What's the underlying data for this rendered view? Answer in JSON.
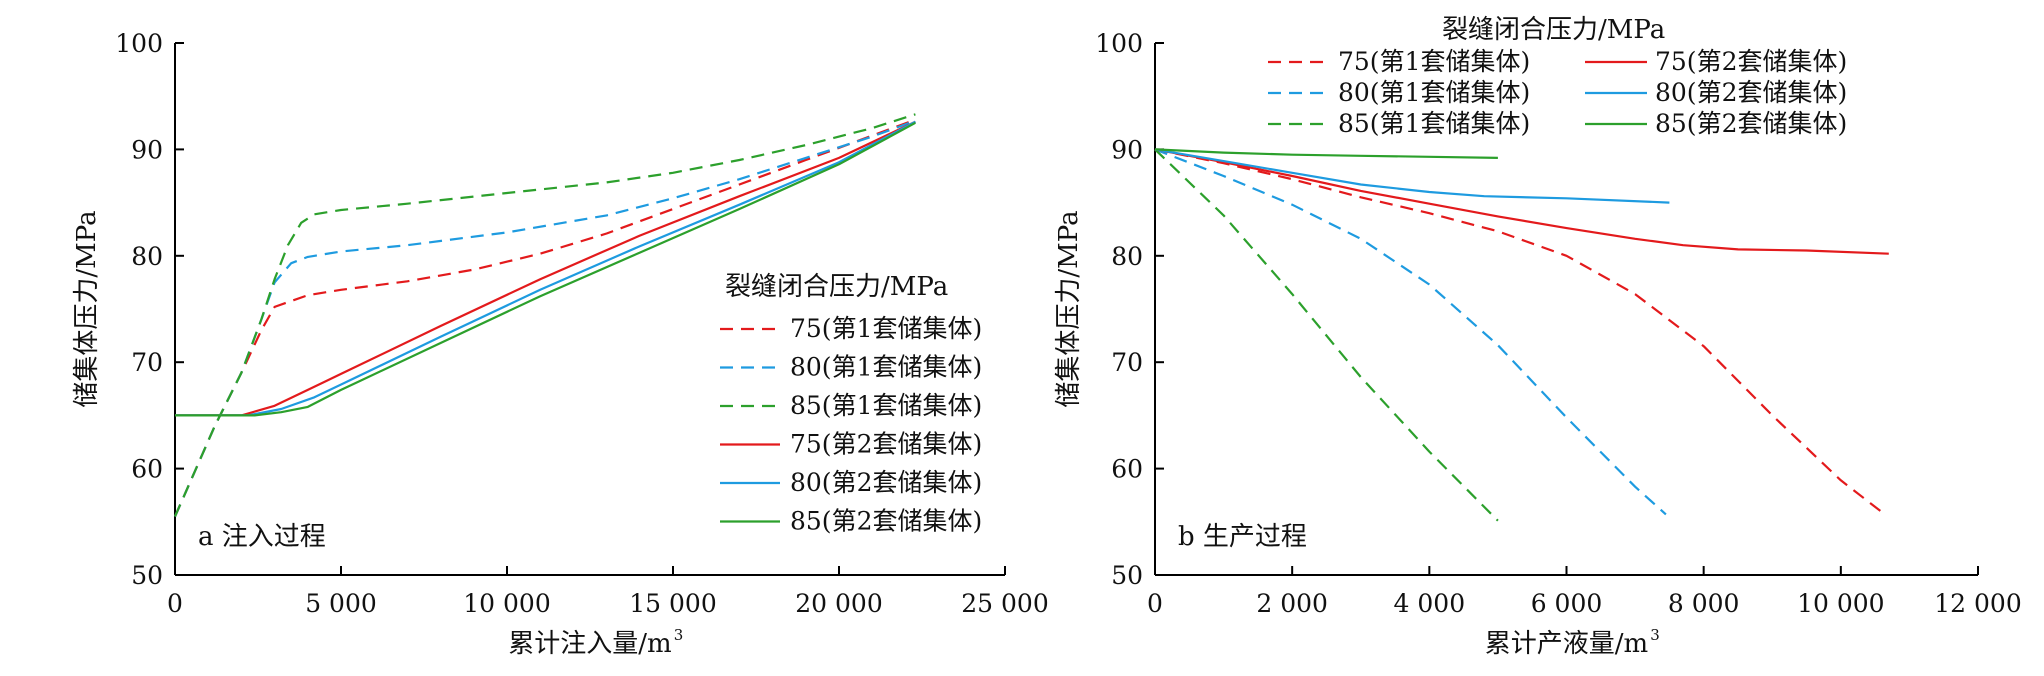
{
  "chart_data": [
    {
      "type": "line",
      "panel_label": "a 注入过程",
      "xlabel": "累计注入量/m",
      "xlabel_sup": "3",
      "ylabel": "储集体压力/MPa",
      "xlim": [
        0,
        25000
      ],
      "ylim": [
        50,
        100
      ],
      "xticks": [
        0,
        5000,
        10000,
        15000,
        20000,
        25000
      ],
      "xtick_labels": [
        "0",
        "5 000",
        "10 000",
        "15 000",
        "20 000",
        "25 000"
      ],
      "yticks": [
        50,
        60,
        70,
        80,
        90,
        100
      ],
      "ytick_labels": [
        "50",
        "60",
        "70",
        "80",
        "90",
        "100"
      ],
      "grid": false,
      "legend_title": "裂缝闭合压力/MPa",
      "legend_position": "right",
      "series": [
        {
          "name": "75(第1套储集体)",
          "color": "#e31a1c",
          "dash": true,
          "x": [
            0,
            1200,
            2000,
            2600,
            3000,
            4000,
            5000,
            7000,
            9000,
            11000,
            13000,
            15000,
            17000,
            19000,
            21000,
            22300
          ],
          "y": [
            55.5,
            64,
            69,
            73,
            75.2,
            76.3,
            76.8,
            77.6,
            78.7,
            80.2,
            82.1,
            84.4,
            86.7,
            89.0,
            91.3,
            92.8
          ]
        },
        {
          "name": "80(第1套储集体)",
          "color": "#1e9be0",
          "dash": true,
          "x": [
            0,
            1200,
            2000,
            2600,
            3000,
            3500,
            4000,
            5000,
            7000,
            10000,
            13000,
            15000,
            17000,
            19000,
            21000,
            22300
          ],
          "y": [
            55.5,
            64,
            69,
            74,
            77.5,
            79.3,
            79.9,
            80.4,
            81.0,
            82.2,
            83.8,
            85.4,
            87.2,
            89.2,
            91.2,
            92.7
          ]
        },
        {
          "name": "85(第1套储集体)",
          "color": "#2ca02c",
          "dash": true,
          "x": [
            0,
            1200,
            2000,
            2600,
            3000,
            3400,
            3800,
            4200,
            5000,
            7000,
            10000,
            13000,
            15000,
            17000,
            19000,
            21000,
            22300
          ],
          "y": [
            55.5,
            64,
            69,
            74,
            77.8,
            81.0,
            83.1,
            83.9,
            84.3,
            84.9,
            85.9,
            86.9,
            87.8,
            89.0,
            90.4,
            92.0,
            93.3
          ]
        },
        {
          "name": "75(第2套储集体)",
          "color": "#e31a1c",
          "dash": false,
          "x": [
            0,
            2000,
            3000,
            4000,
            5000,
            8000,
            11000,
            14000,
            17000,
            20000,
            22300
          ],
          "y": [
            65,
            65,
            65.9,
            67.4,
            68.9,
            73.4,
            77.8,
            81.9,
            85.6,
            89.2,
            92.6
          ]
        },
        {
          "name": "80(第2套储集体)",
          "color": "#1e9be0",
          "dash": false,
          "x": [
            0,
            2200,
            3200,
            4200,
            5200,
            8000,
            11000,
            14000,
            17000,
            20000,
            22300
          ],
          "y": [
            65,
            65,
            65.6,
            66.7,
            68.2,
            72.4,
            76.8,
            80.9,
            84.8,
            88.8,
            92.6
          ]
        },
        {
          "name": "85(第2套储集体)",
          "color": "#2ca02c",
          "dash": false,
          "x": [
            0,
            2400,
            3200,
            4000,
            5000,
            8000,
            11000,
            14000,
            17000,
            20000,
            22300
          ],
          "y": [
            65,
            65,
            65.3,
            65.8,
            67.4,
            71.8,
            76.2,
            80.3,
            84.4,
            88.6,
            92.5
          ]
        }
      ]
    },
    {
      "type": "line",
      "panel_label": "b 生产过程",
      "xlabel": "累计产液量/m",
      "xlabel_sup": "3",
      "ylabel": "储集体压力/MPa",
      "xlim": [
        0,
        12000
      ],
      "ylim": [
        50,
        100
      ],
      "xticks": [
        0,
        2000,
        4000,
        6000,
        8000,
        10000,
        12000
      ],
      "xtick_labels": [
        "0",
        "2 000",
        "4 000",
        "6 000",
        "8 000",
        "10 000",
        "12 000"
      ],
      "yticks": [
        50,
        60,
        70,
        80,
        90,
        100
      ],
      "ytick_labels": [
        "50",
        "60",
        "70",
        "80",
        "90",
        "100"
      ],
      "grid": false,
      "legend_title": "裂缝闭合压力/MPa",
      "legend_position": "top",
      "series": [
        {
          "name": "75(第1套储集体)",
          "color": "#e31a1c",
          "dash": true,
          "x": [
            0,
            1000,
            2000,
            3000,
            4000,
            5000,
            6000,
            7000,
            8000,
            9000,
            10000,
            10600
          ],
          "y": [
            90,
            88.7,
            87.2,
            85.5,
            84.0,
            82.3,
            80.0,
            76.4,
            71.5,
            65.0,
            58.9,
            55.9
          ]
        },
        {
          "name": "80(第1套储集体)",
          "color": "#1e9be0",
          "dash": true,
          "x": [
            0,
            1000,
            2000,
            3000,
            4000,
            5000,
            6000,
            7000,
            7450
          ],
          "y": [
            90,
            87.5,
            84.8,
            81.6,
            77.3,
            71.6,
            64.8,
            58.3,
            55.7
          ]
        },
        {
          "name": "85(第1套储集体)",
          "color": "#2ca02c",
          "dash": true,
          "x": [
            0,
            1000,
            2000,
            3000,
            4000,
            5000
          ],
          "y": [
            90,
            83.8,
            76.4,
            68.6,
            61.6,
            55.1
          ]
        },
        {
          "name": "75(第2套储集体)",
          "color": "#e31a1c",
          "dash": false,
          "x": [
            0,
            1000,
            2000,
            3000,
            4000,
            5000,
            6000,
            7000,
            7700,
            8500,
            9500,
            10700
          ],
          "y": [
            90,
            88.8,
            87.5,
            86.1,
            84.9,
            83.7,
            82.6,
            81.6,
            81.0,
            80.6,
            80.5,
            80.2
          ]
        },
        {
          "name": "80(第2套储集体)",
          "color": "#1e9be0",
          "dash": false,
          "x": [
            0,
            1000,
            2000,
            3000,
            4000,
            4800,
            6000,
            7500
          ],
          "y": [
            90,
            88.9,
            87.8,
            86.7,
            86.0,
            85.6,
            85.4,
            85.0
          ]
        },
        {
          "name": "85(第2套储集体)",
          "color": "#2ca02c",
          "dash": false,
          "x": [
            0,
            1000,
            2000,
            3000,
            4000,
            5000
          ],
          "y": [
            90,
            89.7,
            89.5,
            89.4,
            89.3,
            89.2
          ]
        }
      ]
    }
  ]
}
